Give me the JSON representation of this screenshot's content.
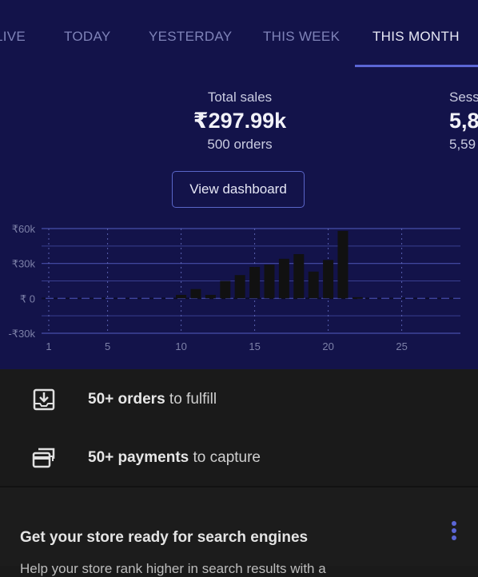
{
  "tabs": [
    {
      "label": "LIVE",
      "active": false
    },
    {
      "label": "TODAY",
      "active": false
    },
    {
      "label": "YESTERDAY",
      "active": false
    },
    {
      "label": "THIS WEEK",
      "active": false
    },
    {
      "label": "THIS MONTH",
      "active": true
    }
  ],
  "metrics": {
    "total_sales": {
      "label": "Total sales",
      "value": "₹297.99k",
      "sub": "500 orders"
    },
    "sessions": {
      "label": "Sess",
      "value": "5,8",
      "sub": "5,59"
    }
  },
  "view_dashboard_label": "View dashboard",
  "chart_data": {
    "type": "bar",
    "y_tick_labels": [
      "₹60k",
      "₹30k",
      "₹ 0",
      "-₹30k"
    ],
    "y_ticks": [
      60000,
      30000,
      0,
      -30000
    ],
    "ylim": [
      -30000,
      60000
    ],
    "x_tick_labels": [
      "1",
      "5",
      "10",
      "15",
      "20",
      "25"
    ],
    "x_ticks": [
      1,
      5,
      10,
      15,
      20,
      25
    ],
    "xlim": [
      1,
      28
    ],
    "categories": [
      1,
      2,
      3,
      4,
      5,
      6,
      7,
      8,
      9,
      10,
      11,
      12,
      13,
      14,
      15,
      16,
      17,
      18,
      19,
      20,
      21,
      22
    ],
    "values": [
      0,
      0,
      0,
      0,
      0,
      0,
      0,
      0,
      0,
      3000,
      8000,
      3000,
      15000,
      20000,
      27000,
      29000,
      34000,
      38000,
      23000,
      33000,
      58000,
      1000
    ],
    "grid": true
  },
  "actions": {
    "orders": {
      "bold": "50+ orders",
      "rest": " to fulfill"
    },
    "payments": {
      "bold": "50+ payments",
      "rest": " to capture"
    }
  },
  "card": {
    "title": "Get your store ready for search engines",
    "subtitle": "Help your store rank higher in search results with a"
  },
  "colors": {
    "header_bg": "#13134a",
    "accent": "#5b66d6",
    "bar": "#111111",
    "grid": "#4a52b0"
  },
  "icons": {
    "orders": "download-box-icon",
    "payments": "card-stack-icon",
    "more": "more-vertical-icon"
  }
}
